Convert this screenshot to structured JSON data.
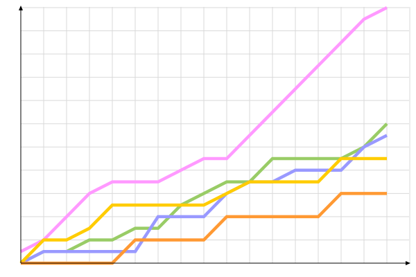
{
  "chart_data": {
    "type": "line",
    "title": "",
    "xlabel": "",
    "ylabel": "",
    "x": [
      0,
      1,
      2,
      3,
      4,
      5,
      6,
      7,
      8,
      9,
      10,
      11,
      12,
      13,
      14,
      15,
      16
    ],
    "xlim": [
      0,
      17
    ],
    "ylim": [
      0,
      11
    ],
    "grid": true,
    "legend": "none",
    "series": [
      {
        "color": "#ff99ff",
        "values": [
          0.5,
          1,
          2,
          3,
          3.5,
          3.5,
          3.5,
          4,
          4.5,
          4.5,
          5.5,
          6.5,
          7.5,
          8.5,
          9.5,
          10.5,
          11
        ]
      },
      {
        "color": "#99cc66",
        "values": [
          0,
          0.5,
          0.5,
          1,
          1,
          1.5,
          1.5,
          2.5,
          3,
          3.5,
          3.5,
          4.5,
          4.5,
          4.5,
          4.5,
          5,
          6
        ]
      },
      {
        "color": "#9999ff",
        "values": [
          0,
          0.5,
          0.5,
          0.5,
          0.5,
          0.5,
          2,
          2,
          2,
          3,
          3.5,
          3.5,
          4,
          4,
          4,
          5,
          5.5
        ]
      },
      {
        "color": "#ffcc00",
        "values": [
          0,
          1,
          1,
          1.5,
          2.5,
          2.5,
          2.5,
          2.5,
          2.5,
          3,
          3.5,
          3.5,
          3.5,
          3.5,
          4.5,
          4.5,
          4.5
        ]
      },
      {
        "color": "#ff9933",
        "values": [
          0,
          0,
          0,
          0,
          0,
          1,
          1,
          1,
          1,
          2,
          2,
          2,
          2,
          2,
          3,
          3,
          3
        ]
      }
    ]
  }
}
